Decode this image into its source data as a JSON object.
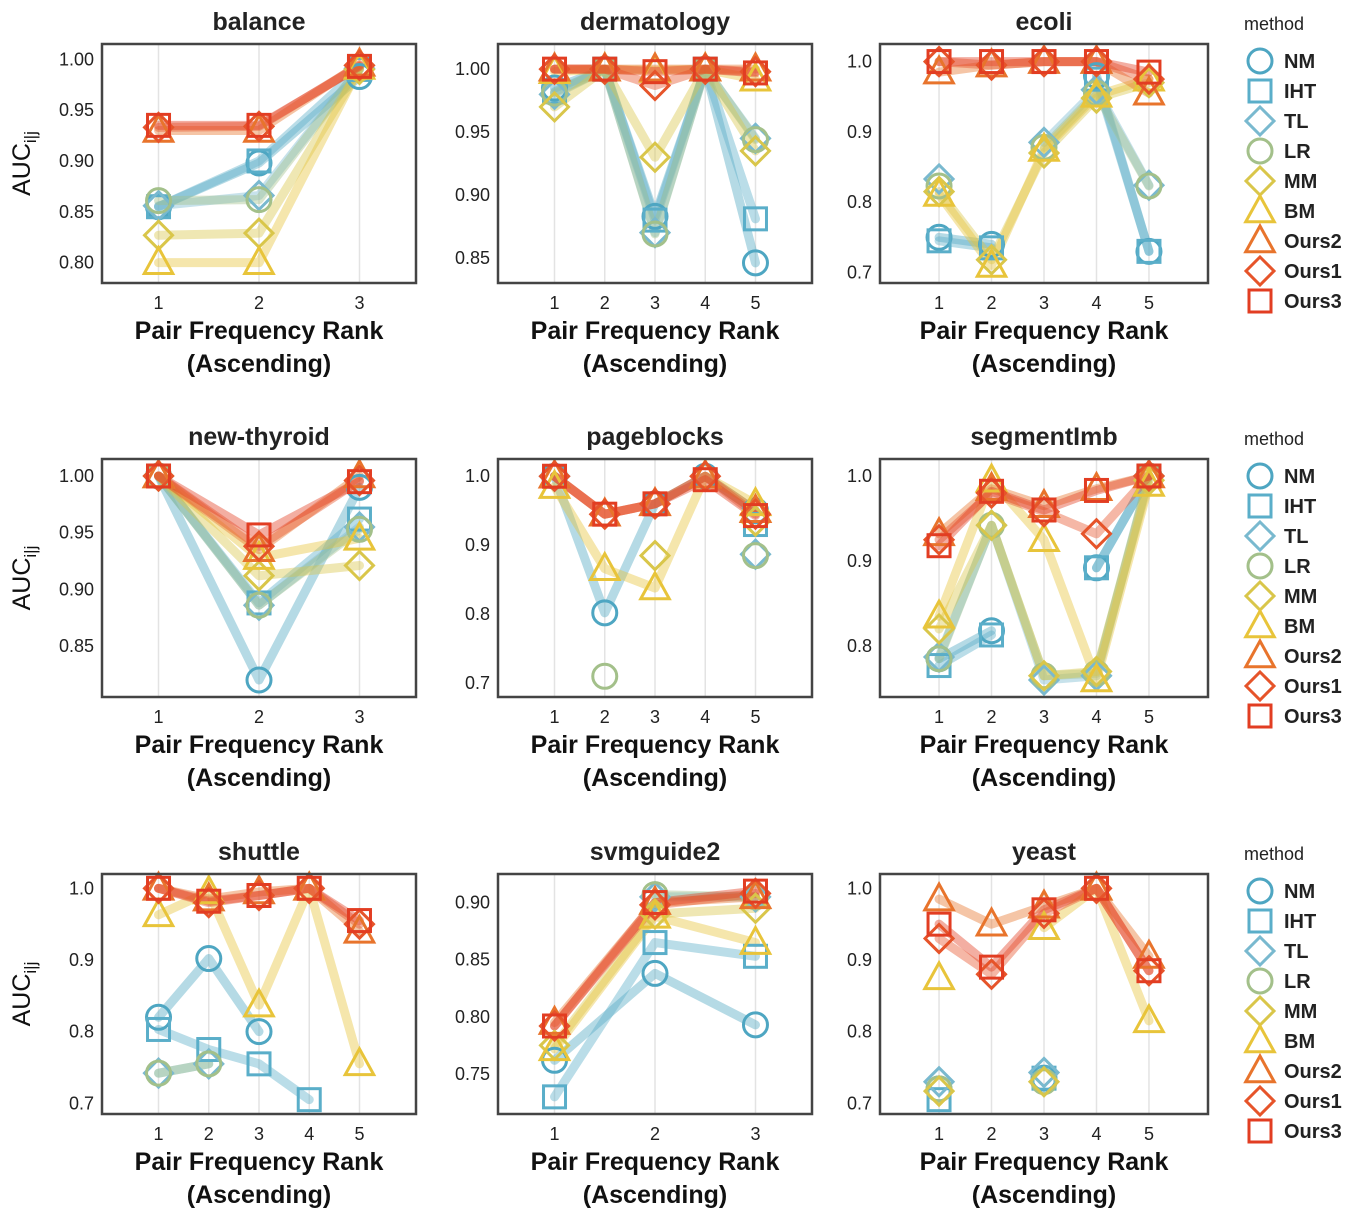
{
  "figure": {
    "ylabel_base": "AUC",
    "ylabel_sub": "i|j",
    "xlabel_line1": "Pair Frequency Rank",
    "xlabel_line2": "(Ascending)",
    "legend_title": "method"
  },
  "colors": {
    "NM": "#4ea6c2",
    "IHT": "#5aaec9",
    "TL": "#79b9cf",
    "LR": "#a3c08a",
    "MM": "#d9c64a",
    "BM": "#e8c43a",
    "Ours2": "#e8742c",
    "Ours1": "#e6542a",
    "Ours3": "#e23d22"
  },
  "methods": [
    {
      "name": "NM",
      "marker": "circle"
    },
    {
      "name": "IHT",
      "marker": "square"
    },
    {
      "name": "TL",
      "marker": "diamond"
    },
    {
      "name": "LR",
      "marker": "circle"
    },
    {
      "name": "MM",
      "marker": "diamond"
    },
    {
      "name": "BM",
      "marker": "triangle"
    },
    {
      "name": "Ours2",
      "marker": "triangle"
    },
    {
      "name": "Ours1",
      "marker": "diamond"
    },
    {
      "name": "Ours3",
      "marker": "square"
    }
  ],
  "chart_data": [
    {
      "type": "line",
      "title": "balance",
      "xlabel": "Pair Frequency Rank (Ascending)",
      "ylabel": "AUC i|j",
      "x": [
        1,
        2,
        3
      ],
      "ylim": [
        0.78,
        1.015
      ],
      "yticks": [
        0.8,
        0.85,
        0.9,
        0.95,
        1.0
      ],
      "ytick_labels": [
        "0.80",
        "0.85",
        "0.90",
        "0.95",
        "1.00"
      ],
      "series": [
        {
          "name": "NM",
          "values": [
            0.855,
            0.898,
            0.983
          ]
        },
        {
          "name": "IHT",
          "values": [
            0.855,
            0.9,
            0.99
          ]
        },
        {
          "name": "TL",
          "values": [
            0.856,
            0.866,
            0.991
          ]
        },
        {
          "name": "LR",
          "values": [
            0.861,
            0.862,
            0.991
          ]
        },
        {
          "name": "MM",
          "values": [
            0.827,
            0.829,
            0.99
          ]
        },
        {
          "name": "BM",
          "values": [
            0.8,
            0.8,
            0.992
          ]
        },
        {
          "name": "Ours2",
          "values": [
            0.93,
            0.93,
            0.995
          ]
        },
        {
          "name": "Ours1",
          "values": [
            0.933,
            0.934,
            0.994
          ]
        },
        {
          "name": "Ours3",
          "values": [
            0.935,
            0.935,
            0.993
          ]
        }
      ]
    },
    {
      "type": "line",
      "title": "dermatology",
      "xlabel": "Pair Frequency Rank (Ascending)",
      "ylabel": "AUC i|j",
      "x": [
        1,
        2,
        3,
        4,
        5
      ],
      "ylim": [
        0.83,
        1.02
      ],
      "yticks": [
        0.85,
        0.9,
        0.95,
        1.0
      ],
      "ytick_labels": [
        "0.85",
        "0.90",
        "0.95",
        "1.00"
      ],
      "series": [
        {
          "name": "NM",
          "values": [
            0.985,
            1.0,
            0.883,
            1.0,
            0.846
          ]
        },
        {
          "name": "IHT",
          "values": [
            0.982,
            1.0,
            0.88,
            1.0,
            0.881
          ]
        },
        {
          "name": "TL",
          "values": [
            0.98,
            1.0,
            0.87,
            1.0,
            0.945
          ]
        },
        {
          "name": "LR",
          "values": [
            0.981,
            1.0,
            0.869,
            1.0,
            0.944
          ]
        },
        {
          "name": "MM",
          "values": [
            0.97,
            1.0,
            0.93,
            1.0,
            0.935
          ]
        },
        {
          "name": "BM",
          "values": [
            0.998,
            1.0,
            0.999,
            1.0,
            0.992
          ]
        },
        {
          "name": "Ours2",
          "values": [
            1.0,
            1.0,
            1.0,
            1.0,
            1.0
          ]
        },
        {
          "name": "Ours1",
          "values": [
            1.0,
            1.0,
            0.987,
            1.0,
            0.998
          ]
        },
        {
          "name": "Ours3",
          "values": [
            1.0,
            1.0,
            0.998,
            1.0,
            0.997
          ]
        }
      ]
    },
    {
      "type": "line",
      "title": "ecoli",
      "xlabel": "Pair Frequency Rank (Ascending)",
      "ylabel": "AUC i|j",
      "x": [
        1,
        2,
        3,
        4,
        5
      ],
      "ylim": [
        0.685,
        1.025
      ],
      "yticks": [
        0.7,
        0.8,
        0.9,
        1.0
      ],
      "ytick_labels": [
        "0.7",
        "0.8",
        "0.9",
        "1.0"
      ],
      "series": [
        {
          "name": "NM",
          "values": [
            0.75,
            0.74,
            null,
            0.98,
            0.73
          ]
        },
        {
          "name": "IHT",
          "values": [
            0.745,
            0.735,
            null,
            0.975,
            0.73
          ]
        },
        {
          "name": "TL",
          "values": [
            0.833,
            null,
            0.885,
            0.96,
            0.824
          ]
        },
        {
          "name": "LR",
          "values": [
            0.823,
            null,
            0.878,
            0.955,
            0.823
          ]
        },
        {
          "name": "MM",
          "values": [
            0.815,
            0.718,
            0.87,
            0.948,
            0.97
          ]
        },
        {
          "name": "BM",
          "values": [
            0.811,
            0.71,
            0.875,
            0.952,
            0.975
          ]
        },
        {
          "name": "Ours2",
          "values": [
            0.985,
            0.995,
            1.0,
            1.0,
            0.955
          ]
        },
        {
          "name": "Ours1",
          "values": [
            1.0,
            0.995,
            1.0,
            1.0,
            0.975
          ]
        },
        {
          "name": "Ours3",
          "values": [
            1.0,
            1.0,
            1.0,
            1.0,
            0.985
          ]
        }
      ]
    },
    {
      "type": "line",
      "title": "new-thyroid",
      "xlabel": "Pair Frequency Rank (Ascending)",
      "ylabel": "AUC i|j",
      "x": [
        1,
        2,
        3
      ],
      "ylim": [
        0.805,
        1.015
      ],
      "yticks": [
        0.85,
        0.9,
        0.95,
        1.0
      ],
      "ytick_labels": [
        "0.85",
        "0.90",
        "0.95",
        "1.00"
      ],
      "series": [
        {
          "name": "NM",
          "values": [
            1.0,
            0.82,
            0.99
          ]
        },
        {
          "name": "IHT",
          "values": [
            1.0,
            0.888,
            0.962
          ]
        },
        {
          "name": "TL",
          "values": [
            1.0,
            0.886,
            0.955
          ]
        },
        {
          "name": "LR",
          "values": [
            1.0,
            0.886,
            0.953
          ]
        },
        {
          "name": "MM",
          "values": [
            1.0,
            0.912,
            0.921
          ]
        },
        {
          "name": "BM",
          "values": [
            1.0,
            0.928,
            0.945
          ]
        },
        {
          "name": "Ours2",
          "values": [
            1.0,
            0.935,
            1.0
          ]
        },
        {
          "name": "Ours1",
          "values": [
            1.0,
            0.938,
            0.996
          ]
        },
        {
          "name": "Ours3",
          "values": [
            1.0,
            0.948,
            0.995
          ]
        }
      ]
    },
    {
      "type": "line",
      "title": "pageblocks",
      "xlabel": "Pair Frequency Rank (Ascending)",
      "ylabel": "AUC i|j",
      "x": [
        1,
        2,
        3,
        4,
        5
      ],
      "ylim": [
        0.68,
        1.025
      ],
      "yticks": [
        0.7,
        0.8,
        0.9,
        1.0
      ],
      "ytick_labels": [
        "0.7",
        "0.8",
        "0.9",
        "1.0"
      ],
      "series": [
        {
          "name": "NM",
          "values": [
            1.0,
            0.802,
            0.96,
            1.0,
            0.95
          ]
        },
        {
          "name": "IHT",
          "values": [
            null,
            null,
            null,
            null,
            0.93
          ]
        },
        {
          "name": "TL",
          "values": [
            1.0,
            null,
            null,
            null,
            0.887
          ]
        },
        {
          "name": "LR",
          "values": [
            null,
            0.71,
            null,
            null,
            0.885
          ]
        },
        {
          "name": "MM",
          "values": [
            null,
            null,
            0.885,
            null,
            0.935
          ]
        },
        {
          "name": "BM",
          "values": [
            0.985,
            0.866,
            0.838,
            1.0,
            0.96
          ]
        },
        {
          "name": "Ours2",
          "values": [
            1.0,
            0.945,
            0.96,
            1.0,
            0.95
          ]
        },
        {
          "name": "Ours1",
          "values": [
            1.0,
            0.945,
            0.96,
            1.0,
            0.945
          ]
        },
        {
          "name": "Ours3",
          "values": [
            1.0,
            0.945,
            0.96,
            0.995,
            0.943
          ]
        }
      ]
    },
    {
      "type": "line",
      "title": "segmentImb",
      "xlabel": "Pair Frequency Rank (Ascending)",
      "ylabel": "AUC i|j",
      "x": [
        1,
        2,
        3,
        4,
        5
      ],
      "ylim": [
        0.74,
        1.02
      ],
      "yticks": [
        0.8,
        0.9,
        1.0
      ],
      "ytick_labels": [
        "0.8",
        "0.9",
        "1.0"
      ],
      "series": [
        {
          "name": "NM",
          "values": [
            0.785,
            0.818,
            null,
            0.892,
            1.0
          ]
        },
        {
          "name": "IHT",
          "values": [
            0.777,
            0.813,
            null,
            0.892,
            1.0
          ]
        },
        {
          "name": "TL",
          "values": [
            0.787,
            0.942,
            0.76,
            0.765,
            1.0
          ]
        },
        {
          "name": "LR",
          "values": [
            0.785,
            0.942,
            0.765,
            0.768,
            1.0
          ]
        },
        {
          "name": "MM",
          "values": [
            0.82,
            0.942,
            0.765,
            0.77,
            0.995
          ]
        },
        {
          "name": "BM",
          "values": [
            0.835,
            0.995,
            0.925,
            0.76,
            0.99
          ]
        },
        {
          "name": "Ours2",
          "values": [
            0.932,
            0.985,
            0.965,
            0.985,
            1.0
          ]
        },
        {
          "name": "Ours1",
          "values": [
            0.925,
            0.98,
            0.958,
            0.932,
            1.0
          ]
        },
        {
          "name": "Ours3",
          "values": [
            0.918,
            0.982,
            0.96,
            0.983,
            1.0
          ]
        }
      ]
    },
    {
      "type": "line",
      "title": "shuttle",
      "xlabel": "Pair Frequency Rank (Ascending)",
      "ylabel": "AUC i|j",
      "x": [
        1,
        2,
        3,
        4,
        5
      ],
      "ylim": [
        0.685,
        1.02
      ],
      "yticks": [
        0.7,
        0.8,
        0.9,
        1.0
      ],
      "ytick_labels": [
        "0.7",
        "0.8",
        "0.9",
        "1.0"
      ],
      "series": [
        {
          "name": "NM",
          "values": [
            0.82,
            0.902,
            0.8,
            null,
            null
          ]
        },
        {
          "name": "IHT",
          "values": [
            0.803,
            0.775,
            0.755,
            0.705,
            null
          ]
        },
        {
          "name": "TL",
          "values": [
            0.742,
            0.755,
            null,
            null,
            null
          ]
        },
        {
          "name": "LR",
          "values": [
            0.742,
            0.755,
            null,
            null,
            null
          ]
        },
        {
          "name": "MM",
          "values": [
            null,
            null,
            null,
            null,
            null
          ]
        },
        {
          "name": "BM",
          "values": [
            0.963,
            0.995,
            0.837,
            1.0,
            0.755
          ]
        },
        {
          "name": "Ours2",
          "values": [
            1.0,
            0.985,
            0.995,
            1.0,
            0.94
          ]
        },
        {
          "name": "Ours1",
          "values": [
            1.0,
            0.98,
            0.99,
            1.0,
            0.95
          ]
        },
        {
          "name": "Ours3",
          "values": [
            1.0,
            0.982,
            0.99,
            1.0,
            0.955
          ]
        }
      ]
    },
    {
      "type": "line",
      "title": "svmguide2",
      "xlabel": "Pair Frequency Rank (Ascending)",
      "ylabel": "AUC i|j",
      "x": [
        1,
        2,
        3
      ],
      "ylim": [
        0.715,
        0.925
      ],
      "yticks": [
        0.75,
        0.8,
        0.85,
        0.9
      ],
      "ytick_labels": [
        "0.75",
        "0.80",
        "0.85",
        "0.90"
      ],
      "series": [
        {
          "name": "NM",
          "values": [
            0.762,
            0.838,
            0.793
          ]
        },
        {
          "name": "IHT",
          "values": [
            0.73,
            0.865,
            0.853
          ]
        },
        {
          "name": "TL",
          "values": [
            null,
            0.905,
            0.905
          ]
        },
        {
          "name": "LR",
          "values": [
            null,
            0.907,
            0.905
          ]
        },
        {
          "name": "MM",
          "values": [
            0.775,
            0.89,
            0.895
          ]
        },
        {
          "name": "BM",
          "values": [
            0.772,
            0.888,
            0.865
          ]
        },
        {
          "name": "Ours2",
          "values": [
            0.795,
            0.9,
            0.905
          ]
        },
        {
          "name": "Ours1",
          "values": [
            0.792,
            0.898,
            0.908
          ]
        },
        {
          "name": "Ours3",
          "values": [
            0.792,
            0.9,
            0.91
          ]
        }
      ]
    },
    {
      "type": "line",
      "title": "yeast",
      "xlabel": "Pair Frequency Rank (Ascending)",
      "ylabel": "AUC i|j",
      "x": [
        1,
        2,
        3,
        4,
        5
      ],
      "ylim": [
        0.685,
        1.02
      ],
      "yticks": [
        0.7,
        0.8,
        0.9,
        1.0
      ],
      "ytick_labels": [
        "0.7",
        "0.8",
        "0.9",
        "1.0"
      ],
      "series": [
        {
          "name": "NM",
          "values": [
            0.72,
            null,
            0.735,
            null,
            null
          ]
        },
        {
          "name": "IHT",
          "values": [
            0.705,
            null,
            0.735,
            null,
            null
          ]
        },
        {
          "name": "TL",
          "values": [
            0.73,
            null,
            0.743,
            null,
            null
          ]
        },
        {
          "name": "LR",
          "values": [
            0.72,
            null,
            0.73,
            null,
            null
          ]
        },
        {
          "name": "MM",
          "values": [
            0.717,
            null,
            0.73,
            null,
            null
          ]
        },
        {
          "name": "BM",
          "values": [
            0.875,
            null,
            0.945,
            1.0,
            0.815
          ]
        },
        {
          "name": "Ours2",
          "values": [
            0.985,
            0.95,
            0.975,
            1.0,
            0.905
          ]
        },
        {
          "name": "Ours1",
          "values": [
            0.93,
            0.88,
            0.965,
            1.0,
            0.885
          ]
        },
        {
          "name": "Ours3",
          "values": [
            0.95,
            0.89,
            0.97,
            1.0,
            0.885
          ]
        }
      ]
    }
  ]
}
